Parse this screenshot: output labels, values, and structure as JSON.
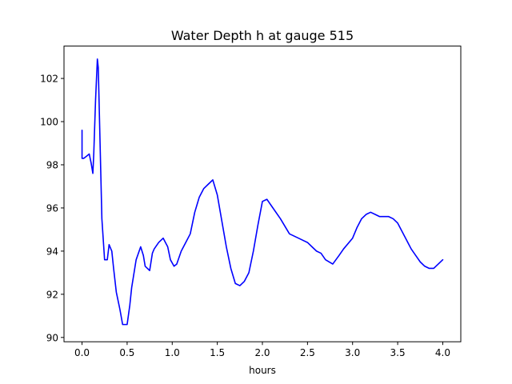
{
  "chart_data": {
    "type": "line",
    "title": "Water Depth h at gauge 515",
    "xlabel": "hours",
    "ylabel": "",
    "xlim": [
      -0.2,
      4.2
    ],
    "ylim": [
      89.8,
      103.5
    ],
    "xticks": [
      0.0,
      0.5,
      1.0,
      1.5,
      2.0,
      2.5,
      3.0,
      3.5,
      4.0
    ],
    "xtick_labels": [
      "0.0",
      "0.5",
      "1.0",
      "1.5",
      "2.0",
      "2.5",
      "3.0",
      "3.5",
      "4.0"
    ],
    "yticks": [
      90,
      92,
      94,
      96,
      98,
      100,
      102
    ],
    "ytick_labels": [
      "90",
      "92",
      "94",
      "96",
      "98",
      "100",
      "102"
    ],
    "grid": false,
    "line_color": "#0000ff",
    "series": [
      {
        "x": [
          0.0,
          0.0,
          0.02,
          0.05,
          0.08,
          0.1,
          0.12,
          0.13,
          0.15,
          0.17,
          0.18,
          0.2,
          0.22,
          0.25,
          0.28,
          0.3,
          0.33,
          0.35,
          0.38,
          0.42,
          0.45,
          0.5,
          0.53,
          0.55,
          0.6,
          0.65,
          0.68,
          0.7,
          0.75,
          0.78,
          0.8,
          0.85,
          0.9,
          0.95,
          0.98,
          1.02,
          1.05,
          1.1,
          1.15,
          1.2,
          1.25,
          1.3,
          1.35,
          1.4,
          1.45,
          1.5,
          1.55,
          1.6,
          1.65,
          1.7,
          1.75,
          1.8,
          1.85,
          1.9,
          1.95,
          2.0,
          2.05,
          2.1,
          2.2,
          2.3,
          2.4,
          2.5,
          2.55,
          2.6,
          2.65,
          2.7,
          2.78,
          2.85,
          2.9,
          3.0,
          3.05,
          3.1,
          3.15,
          3.2,
          3.25,
          3.3,
          3.4,
          3.45,
          3.5,
          3.55,
          3.6,
          3.65,
          3.7,
          3.75,
          3.8,
          3.85,
          3.9,
          3.95,
          4.0
        ],
        "y": [
          99.6,
          98.3,
          98.3,
          98.4,
          98.5,
          98.1,
          97.6,
          98.5,
          101.0,
          102.9,
          102.5,
          99.0,
          95.5,
          93.6,
          93.6,
          94.3,
          94.0,
          93.2,
          92.1,
          91.3,
          90.6,
          90.6,
          91.5,
          92.3,
          93.6,
          94.2,
          93.8,
          93.3,
          93.1,
          93.9,
          94.1,
          94.4,
          94.6,
          94.2,
          93.6,
          93.3,
          93.4,
          94.0,
          94.4,
          94.8,
          95.8,
          96.5,
          96.9,
          97.1,
          97.3,
          96.6,
          95.4,
          94.2,
          93.2,
          92.5,
          92.4,
          92.6,
          93.0,
          94.0,
          95.2,
          96.3,
          96.4,
          96.1,
          95.5,
          94.8,
          94.6,
          94.4,
          94.2,
          94.0,
          93.9,
          93.6,
          93.4,
          93.8,
          94.1,
          94.6,
          95.1,
          95.5,
          95.7,
          95.8,
          95.7,
          95.6,
          95.6,
          95.5,
          95.3,
          94.9,
          94.5,
          94.1,
          93.8,
          93.5,
          93.3,
          93.2,
          93.2,
          93.4,
          93.6
        ]
      }
    ]
  }
}
